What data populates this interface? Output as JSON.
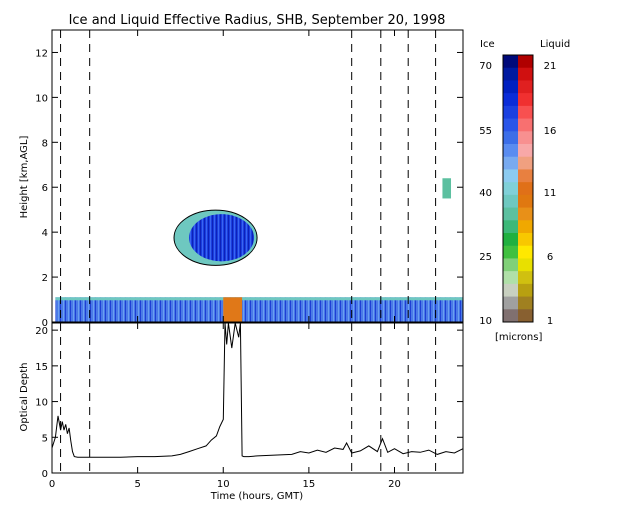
{
  "chart_data": [
    {
      "type": "heatmap",
      "title": "Ice and Liquid Effective Radius, SHB, September 20, 1998",
      "ylabel": "Height [km,AGL]",
      "xlim": [
        0,
        24
      ],
      "ylim": [
        0,
        13
      ],
      "x_ticks": [
        0,
        5,
        10,
        15,
        20
      ],
      "y_ticks": [
        0,
        2,
        4,
        6,
        8,
        10,
        12
      ],
      "cloud_regions": [
        {
          "name": "low-cloud-layer",
          "x_start": 0.2,
          "x_end": 24,
          "y_bottom": 0.0,
          "y_top": 1.1
        },
        {
          "name": "mid-level-ice-cloud",
          "x_start": 7.3,
          "x_end": 11.8,
          "y_bottom": 2.7,
          "y_top": 4.8
        },
        {
          "name": "liquid-patch-near-10h",
          "x_start": 10.0,
          "x_end": 11.1,
          "y_bottom": 0.0,
          "y_top": 1.1
        },
        {
          "name": "small-patch-near-23h",
          "x_start": 22.8,
          "x_end": 23.3,
          "y_bottom": 5.5,
          "y_top": 6.4
        }
      ],
      "dashed_time_markers": [
        0.5,
        2.2,
        17.5,
        19.2,
        20.8,
        22.4
      ],
      "colorbar": {
        "ice_label": "Ice",
        "liquid_label": "Liquid",
        "units": "[microns]",
        "ice_ticks": [
          "70",
          "55",
          "40",
          "25",
          "10"
        ],
        "liquid_ticks": [
          "21",
          "16",
          "11",
          "6",
          "1"
        ],
        "ice_colors": [
          "#000a7a",
          "#001aa0",
          "#0020c0",
          "#0a2cd8",
          "#1a40e0",
          "#2a55e8",
          "#3c6ee8",
          "#5a8cf0",
          "#78aaf0",
          "#8ccbf0",
          "#80d0d8",
          "#6ec8c0",
          "#5cc0a0",
          "#3cb878",
          "#20b040",
          "#40c040",
          "#80d078",
          "#b0e0a8",
          "#c8d0c0",
          "#a0a0a0",
          "#807070"
        ],
        "liquid_colors": [
          "#b00000",
          "#d01010",
          "#e02020",
          "#f03030",
          "#f85050",
          "#f87070",
          "#f89090",
          "#f8a8a8",
          "#f0a080",
          "#e88040",
          "#e07018",
          "#e07810",
          "#e89018",
          "#f0a800",
          "#f8c800",
          "#ffe800",
          "#e8e000",
          "#d0c010",
          "#b8a010",
          "#a08020",
          "#886030"
        ]
      }
    },
    {
      "type": "line",
      "ylabel": "Optical Depth",
      "xlabel": "Time (hours, GMT)",
      "xlim": [
        0,
        24
      ],
      "ylim": [
        0,
        21
      ],
      "x_ticks": [
        0,
        5,
        10,
        15,
        20
      ],
      "y_ticks": [
        0,
        5,
        10,
        15,
        20
      ],
      "series": [
        {
          "x": [
            0.0,
            0.2,
            0.35,
            0.5,
            0.6,
            0.7,
            0.8,
            0.9,
            1.0,
            1.1,
            1.2,
            1.3,
            1.5,
            2.0,
            3.0,
            4.0,
            5.0,
            6.0,
            7.0,
            7.5,
            8.0,
            8.5,
            9.0,
            9.3,
            9.6,
            9.8,
            10.0,
            10.1,
            10.2,
            10.3,
            10.5,
            10.7,
            10.9,
            11.0,
            11.1,
            11.2,
            11.5,
            12.0,
            13.0,
            14.0,
            14.5,
            15.0,
            15.5,
            16.0,
            16.5,
            17.0,
            17.2,
            17.5,
            18.0,
            18.5,
            19.0,
            19.3,
            19.6,
            20.0,
            20.5,
            21.0,
            21.5,
            22.0,
            22.5,
            23.0,
            23.5,
            24.0
          ],
          "y": [
            3.5,
            5.0,
            8.0,
            6.0,
            7.2,
            6.0,
            6.8,
            5.5,
            6.3,
            4.5,
            3.0,
            2.3,
            2.2,
            2.2,
            2.2,
            2.2,
            2.3,
            2.3,
            2.4,
            2.6,
            3.0,
            3.4,
            3.8,
            4.6,
            5.2,
            6.5,
            7.5,
            21.0,
            18.0,
            21.0,
            17.5,
            21.0,
            19.0,
            21.0,
            2.4,
            2.3,
            2.3,
            2.4,
            2.5,
            2.6,
            3.0,
            2.8,
            3.2,
            2.9,
            3.5,
            3.3,
            4.2,
            2.8,
            3.1,
            3.8,
            3.0,
            4.8,
            2.9,
            3.4,
            2.7,
            3.0,
            2.9,
            3.2,
            2.6,
            3.0,
            2.8,
            3.4
          ]
        }
      ]
    }
  ]
}
